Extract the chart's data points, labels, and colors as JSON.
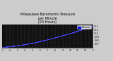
{
  "title": "Milwaukee Barometric Pressure\nper Minute\n(24 Hours)",
  "title_fontsize": 3.5,
  "bg_color": "#cccccc",
  "plot_bg_color": "#111111",
  "dot_color": "#4444ff",
  "dot_size": 0.4,
  "grid_color": "#555555",
  "ylim": [
    29.6,
    30.25
  ],
  "xlim": [
    0,
    1440
  ],
  "ytick_labels": [
    "30.2",
    "30.1",
    "30.0",
    "29.9",
    "29.8",
    "29.7"
  ],
  "ytick_values": [
    30.2,
    30.1,
    30.0,
    29.9,
    29.8,
    29.7
  ],
  "xtick_values": [
    0,
    60,
    120,
    180,
    240,
    300,
    360,
    420,
    480,
    540,
    600,
    660,
    720,
    780,
    840,
    900,
    960,
    1020,
    1080,
    1140,
    1200,
    1260,
    1320,
    1380,
    1440
  ],
  "xtick_labels": [
    "1",
    "",
    "2",
    "",
    "3",
    "",
    "4",
    "",
    "5",
    "",
    "6",
    "",
    "7",
    "",
    "8",
    "",
    "9",
    "",
    "10",
    "",
    "11",
    "",
    "12",
    "",
    "1"
  ],
  "legend_label": "Pressure",
  "legend_color": "#0000ff",
  "num_points": 1440,
  "pressure_start": 29.62,
  "pressure_peak": 30.21,
  "figwidth": 1.6,
  "figheight": 0.87,
  "dpi": 100
}
